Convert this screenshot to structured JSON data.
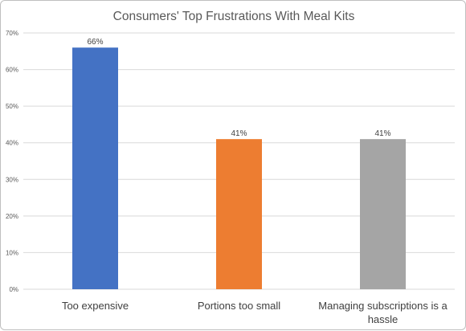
{
  "chart_data": {
    "type": "bar",
    "title": "Consumers' Top Frustrations With Meal Kits",
    "categories": [
      [
        "Too expensive"
      ],
      [
        "Portions too small"
      ],
      [
        "Managing subscriptions is a",
        "hassle"
      ]
    ],
    "values": [
      66,
      41,
      41
    ],
    "data_labels": [
      "66%",
      "41%",
      "41%"
    ],
    "colors": [
      "#4472c4",
      "#ed7d31",
      "#a5a5a5"
    ],
    "y_ticks": [
      "0%",
      "10%",
      "20%",
      "30%",
      "40%",
      "50%",
      "60%",
      "70%"
    ],
    "ylim": [
      0,
      70
    ],
    "grid": true,
    "legend": "none"
  }
}
